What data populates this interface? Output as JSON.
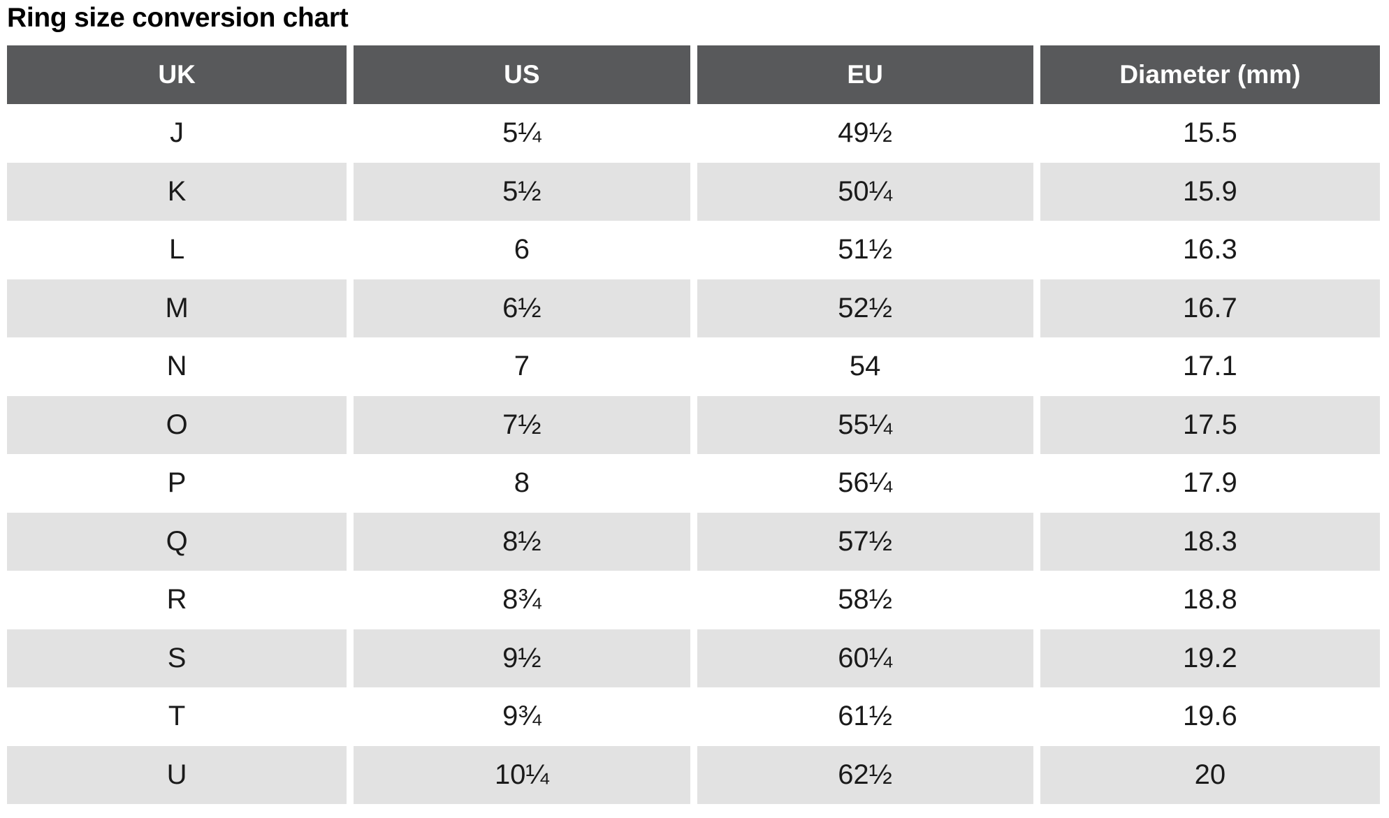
{
  "title": "Ring size conversion chart",
  "colors": {
    "header_bg": "#58595b",
    "header_text": "#ffffff",
    "stripe_bg": "#e2e2e2",
    "row_bg": "#ffffff",
    "text": "#1a1a1a",
    "title_text": "#000000"
  },
  "chart_data": {
    "type": "table",
    "title": "Ring size conversion chart",
    "columns": [
      "UK",
      "US",
      "EU",
      "Diameter (mm)"
    ],
    "rows": [
      {
        "uk": "J",
        "us": "5¼",
        "eu": "49½",
        "diameter": "15.5"
      },
      {
        "uk": "K",
        "us": "5½",
        "eu": "50¼",
        "diameter": "15.9"
      },
      {
        "uk": "L",
        "us": "6",
        "eu": "51½",
        "diameter": "16.3"
      },
      {
        "uk": "M",
        "us": "6½",
        "eu": "52½",
        "diameter": "16.7"
      },
      {
        "uk": "N",
        "us": "7",
        "eu": "54",
        "diameter": "17.1"
      },
      {
        "uk": "O",
        "us": "7½",
        "eu": "55¼",
        "diameter": "17.5"
      },
      {
        "uk": "P",
        "us": "8",
        "eu": "56¼",
        "diameter": "17.9"
      },
      {
        "uk": "Q",
        "us": "8½",
        "eu": "57½",
        "diameter": "18.3"
      },
      {
        "uk": "R",
        "us": "8¾",
        "eu": "58½",
        "diameter": "18.8"
      },
      {
        "uk": "S",
        "us": "9½",
        "eu": "60¼",
        "diameter": "19.2"
      },
      {
        "uk": "T",
        "us": "9¾",
        "eu": "61½",
        "diameter": "19.6"
      },
      {
        "uk": "U",
        "us": "10¼",
        "eu": "62½",
        "diameter": "20"
      }
    ],
    "layout": {
      "striped": true,
      "header_position": "top",
      "column_alignment": "center"
    }
  }
}
